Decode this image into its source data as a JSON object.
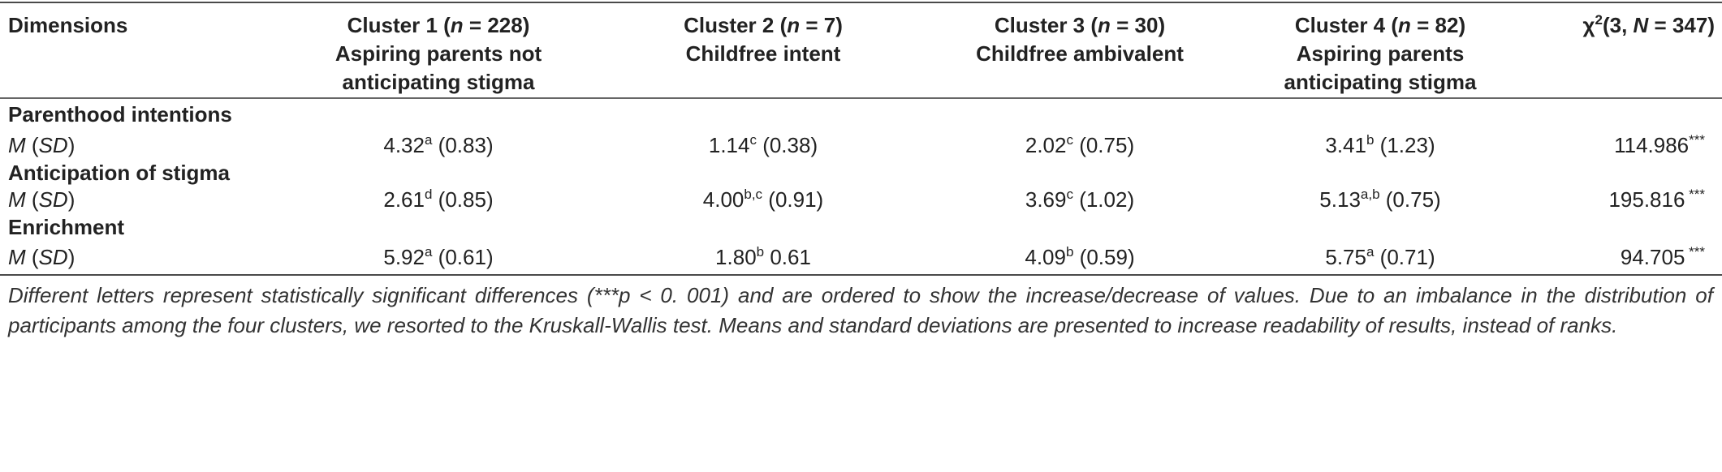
{
  "header": {
    "dimensions": "Dimensions",
    "cluster1_name": "Cluster 1 (",
    "cluster1_n_var": "n",
    "cluster1_n": " = 228)",
    "cluster1_line2": "Aspiring parents not",
    "cluster1_line3": "anticipating stigma",
    "cluster2_name": "Cluster 2 (",
    "cluster2_n_var": "n",
    "cluster2_n": " = 7)",
    "cluster2_line2": "Childfree intent",
    "cluster3_name": "Cluster 3 (",
    "cluster3_n_var": "n",
    "cluster3_n": " = 30)",
    "cluster3_line2": "Childfree ambivalent",
    "cluster4_name": "Cluster 4 (",
    "cluster4_n_var": "n",
    "cluster4_n": " = 82)",
    "cluster4_line2": "Aspiring parents",
    "cluster4_line3": "anticipating stigma",
    "chi_symbol": "χ",
    "chi_sup": "2",
    "chi_args": "(3, ",
    "chi_n_var": "N",
    "chi_n": " = 347)"
  },
  "sections": [
    {
      "title": "Parenthood intentions",
      "stat_m": "M",
      "stat_sd": "SD",
      "values": [
        {
          "mean": "4.32",
          "sup": "a",
          "sd": " (0.83)"
        },
        {
          "mean": "1.14",
          "sup": "c",
          "sd": " (0.38)"
        },
        {
          "mean": "2.02",
          "sup": "c",
          "sd": " (0.75)"
        },
        {
          "mean": "3.41",
          "sup": "b",
          "sd": " (1.23)"
        }
      ],
      "chi": "114.986",
      "chi_stars": "***"
    },
    {
      "title": "Anticipation of stigma",
      "stat_m": "M",
      "stat_sd": "SD",
      "values": [
        {
          "mean": "2.61",
          "sup": "d",
          "sd": " (0.85)"
        },
        {
          "mean": "4.00",
          "sup": "b,c",
          "sd": " (0.91)"
        },
        {
          "mean": "3.69",
          "sup": "c",
          "sd": " (1.02)"
        },
        {
          "mean": "5.13",
          "sup": "a,b",
          "sd": " (0.75)"
        }
      ],
      "chi": "195.816",
      "chi_stars": " ***"
    },
    {
      "title": "Enrichment",
      "stat_m": "M",
      "stat_sd": "SD",
      "values": [
        {
          "mean": "5.92",
          "sup": "a",
          "sd": " (0.61)"
        },
        {
          "mean": "1.80",
          "sup": "b",
          "sd": " 0.61"
        },
        {
          "mean": "4.09",
          "sup": "b",
          "sd": " (0.59)"
        },
        {
          "mean": "5.75",
          "sup": "a",
          "sd": " (0.71)"
        }
      ],
      "chi": "94.705",
      "chi_stars": " ***"
    }
  ],
  "footnote": "Different letters represent statistically significant differences (***p < 0. 001) and are ordered to show the increase/decrease of values. Due to an imbalance in the distribution of participants among the four clusters, we resorted to the Kruskall-Wallis test. Means and standard deviations are presented to increase readability of results, instead of ranks."
}
